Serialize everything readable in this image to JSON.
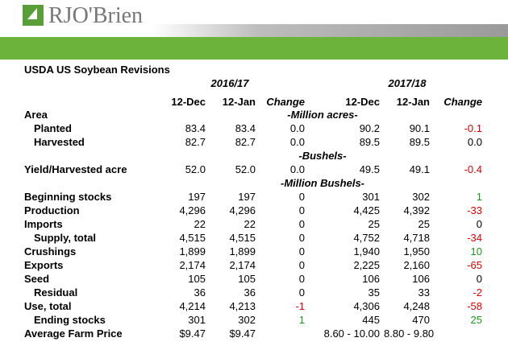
{
  "logo": {
    "text": "RJO'Brien"
  },
  "title": "USDA US Soybean Revisions",
  "years": [
    "2016/17",
    "2017/18"
  ],
  "columns": [
    "12-Dec",
    "12-Jan",
    "Change",
    "12-Dec",
    "12-Jan",
    "Change"
  ],
  "rows": [
    {
      "label": "Area",
      "unit": "-Million acres-"
    },
    {
      "label": "Planted",
      "indent": true,
      "values": [
        "83.4",
        "83.4",
        "0.0",
        "90.2",
        "90.1",
        "-0.1"
      ]
    },
    {
      "label": "Harvested",
      "indent": true,
      "values": [
        "82.7",
        "82.7",
        "0.0",
        "89.5",
        "89.5",
        "0.0"
      ]
    },
    {
      "unit": "-Bushels-"
    },
    {
      "label": "Yield/Harvested acre",
      "values": [
        "52.0",
        "52.0",
        "0.0",
        "49.5",
        "49.1",
        "-0.4"
      ]
    },
    {
      "unit": "-Million Bushels-"
    },
    {
      "label": "Beginning stocks",
      "values": [
        "197",
        "197",
        "0",
        "301",
        "302",
        "1"
      ]
    },
    {
      "label": "Production",
      "values": [
        "4,296",
        "4,296",
        "0",
        "4,425",
        "4,392",
        "-33"
      ]
    },
    {
      "label": "Imports",
      "values": [
        "22",
        "22",
        "0",
        "25",
        "25",
        "0"
      ]
    },
    {
      "label": "Supply, total",
      "indent": true,
      "values": [
        "4,515",
        "4,515",
        "0",
        "4,752",
        "4,718",
        "-34"
      ]
    },
    {
      "label": "Crushings",
      "values": [
        "1,899",
        "1,899",
        "0",
        "1,940",
        "1,950",
        "10"
      ]
    },
    {
      "label": "Exports",
      "values": [
        "2,174",
        "2,174",
        "0",
        "2,225",
        "2,160",
        "-65"
      ]
    },
    {
      "label": "Seed",
      "values": [
        "105",
        "105",
        "0",
        "106",
        "106",
        "0"
      ]
    },
    {
      "label": "Residual",
      "indent": true,
      "values": [
        "36",
        "36",
        "0",
        "35",
        "33",
        "-2"
      ]
    },
    {
      "label": "Use, total",
      "values": [
        "4,214",
        "4,213",
        "-1",
        "4,306",
        "4,248",
        "-58"
      ]
    },
    {
      "label": "Ending stocks",
      "indent": true,
      "values": [
        "301",
        "302",
        "1",
        "445",
        "470",
        "25"
      ]
    },
    {
      "label": "Average Farm Price",
      "values": [
        "$9.47",
        "$9.47",
        null,
        "8.60 - 10.00",
        "8.80 - 9.80",
        null
      ]
    }
  ]
}
